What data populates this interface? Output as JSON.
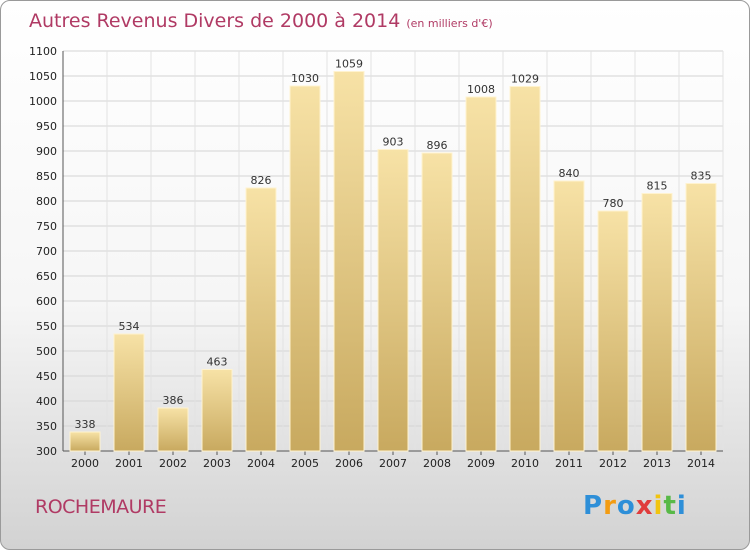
{
  "title": "Autres Revenus Divers de 2000 à 2014",
  "subtitle": "(en milliers d'€)",
  "location": "ROCHEMAURE",
  "brand": {
    "letters": [
      "P",
      "r",
      "o",
      "x",
      "i",
      "t",
      "i"
    ],
    "colors": [
      "#2e8fd8",
      "#f39c12",
      "#2e8fd8",
      "#e03c3c",
      "#f1c40f",
      "#58b947",
      "#2e8fd8"
    ]
  },
  "chart_data": {
    "type": "bar",
    "title": "Autres Revenus Divers de 2000 à 2014",
    "subtitle": "(en milliers d'€)",
    "categories": [
      "2000",
      "2001",
      "2002",
      "2003",
      "2004",
      "2005",
      "2006",
      "2007",
      "2008",
      "2009",
      "2010",
      "2011",
      "2012",
      "2013",
      "2014"
    ],
    "values": [
      338,
      534,
      386,
      463,
      826,
      1030,
      1059,
      903,
      896,
      1008,
      1029,
      840,
      780,
      815,
      835
    ],
    "ylim": [
      300,
      1100
    ],
    "yticks": [
      300,
      350,
      400,
      450,
      500,
      550,
      600,
      650,
      700,
      750,
      800,
      850,
      900,
      950,
      1000,
      1050,
      1100
    ],
    "grid": true,
    "bar_color": "#dcc07e"
  }
}
